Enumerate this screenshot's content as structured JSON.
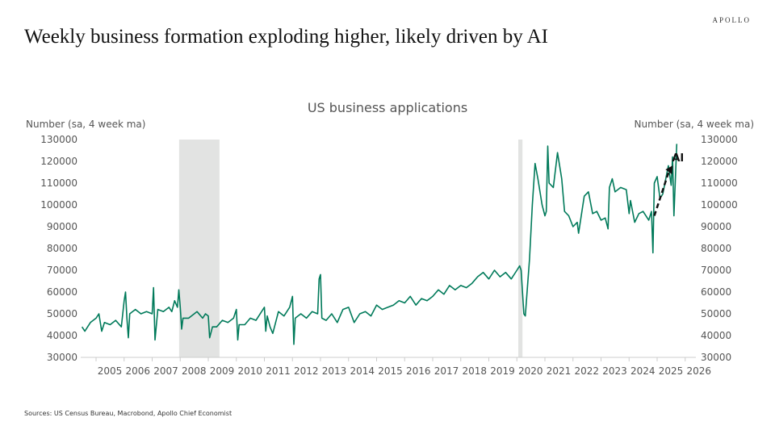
{
  "logo": "APOLLO",
  "headline": "Weekly business formation exploding higher, likely driven by AI",
  "source": "Sources: US Census Bureau, Macrobond, Apollo Chief Economist",
  "chart_data": {
    "type": "line",
    "title": "US business applications",
    "ylabel_left": "Number (sa, 4 week ma)",
    "ylabel_right": "Number (sa, 4 week ma)",
    "ylim": [
      30000,
      130000
    ],
    "yticks": [
      30000,
      40000,
      50000,
      60000,
      70000,
      80000,
      90000,
      100000,
      110000,
      120000,
      130000
    ],
    "xticks": [
      "2005",
      "2006",
      "2007",
      "2008",
      "2009",
      "2010",
      "2011",
      "2012",
      "2013",
      "2014",
      "2015",
      "2016",
      "2017",
      "2018",
      "2019",
      "2020",
      "2021",
      "2022",
      "2023",
      "2024",
      "2025",
      "2026"
    ],
    "line_color": "#007a5a",
    "recession_shading": [
      [
        2007.96,
        2009.4
      ],
      [
        2020.05,
        2020.2
      ]
    ],
    "annotation": {
      "text": "AI",
      "arrow": "dashed",
      "from": [
        2024.9,
        95000
      ],
      "to": [
        2025.5,
        117000
      ]
    },
    "series": [
      {
        "points": [
          [
            2004.5,
            44000
          ],
          [
            2004.6,
            42000
          ],
          [
            2004.8,
            46000
          ],
          [
            2005.0,
            48000
          ],
          [
            2005.1,
            50000
          ],
          [
            2005.2,
            42000
          ],
          [
            2005.3,
            46000
          ],
          [
            2005.5,
            45000
          ],
          [
            2005.7,
            47000
          ],
          [
            2005.9,
            44000
          ],
          [
            2006.0,
            56000
          ],
          [
            2006.05,
            60000
          ],
          [
            2006.1,
            48000
          ],
          [
            2006.15,
            39000
          ],
          [
            2006.2,
            50000
          ],
          [
            2006.4,
            52000
          ],
          [
            2006.6,
            50000
          ],
          [
            2006.8,
            51000
          ],
          [
            2007.0,
            50000
          ],
          [
            2007.05,
            62000
          ],
          [
            2007.1,
            38000
          ],
          [
            2007.2,
            52000
          ],
          [
            2007.4,
            51000
          ],
          [
            2007.6,
            53000
          ],
          [
            2007.7,
            51000
          ],
          [
            2007.8,
            56000
          ],
          [
            2007.9,
            53000
          ],
          [
            2007.95,
            61000
          ],
          [
            2008.0,
            53000
          ],
          [
            2008.05,
            43000
          ],
          [
            2008.1,
            48000
          ],
          [
            2008.3,
            48000
          ],
          [
            2008.5,
            50000
          ],
          [
            2008.6,
            51000
          ],
          [
            2008.8,
            48000
          ],
          [
            2008.9,
            50000
          ],
          [
            2009.0,
            49000
          ],
          [
            2009.05,
            39000
          ],
          [
            2009.15,
            44000
          ],
          [
            2009.3,
            44000
          ],
          [
            2009.5,
            47000
          ],
          [
            2009.7,
            46000
          ],
          [
            2009.9,
            48000
          ],
          [
            2010.0,
            52000
          ],
          [
            2010.05,
            38000
          ],
          [
            2010.1,
            45000
          ],
          [
            2010.3,
            45000
          ],
          [
            2010.5,
            48000
          ],
          [
            2010.7,
            47000
          ],
          [
            2010.9,
            51000
          ],
          [
            2011.0,
            53000
          ],
          [
            2011.05,
            42000
          ],
          [
            2011.1,
            49000
          ],
          [
            2011.2,
            44000
          ],
          [
            2011.3,
            41000
          ],
          [
            2011.5,
            51000
          ],
          [
            2011.7,
            49000
          ],
          [
            2011.9,
            53000
          ],
          [
            2012.0,
            58000
          ],
          [
            2012.05,
            36000
          ],
          [
            2012.1,
            48000
          ],
          [
            2012.3,
            50000
          ],
          [
            2012.5,
            48000
          ],
          [
            2012.7,
            51000
          ],
          [
            2012.9,
            50000
          ],
          [
            2012.95,
            66000
          ],
          [
            2013.0,
            68000
          ],
          [
            2013.05,
            48000
          ],
          [
            2013.2,
            47000
          ],
          [
            2013.4,
            50000
          ],
          [
            2013.6,
            46000
          ],
          [
            2013.8,
            52000
          ],
          [
            2014.0,
            53000
          ],
          [
            2014.2,
            46000
          ],
          [
            2014.4,
            50000
          ],
          [
            2014.6,
            51000
          ],
          [
            2014.8,
            49000
          ],
          [
            2015.0,
            54000
          ],
          [
            2015.2,
            52000
          ],
          [
            2015.4,
            53000
          ],
          [
            2015.6,
            54000
          ],
          [
            2015.8,
            56000
          ],
          [
            2016.0,
            55000
          ],
          [
            2016.2,
            58000
          ],
          [
            2016.4,
            54000
          ],
          [
            2016.6,
            57000
          ],
          [
            2016.8,
            56000
          ],
          [
            2017.0,
            58000
          ],
          [
            2017.2,
            61000
          ],
          [
            2017.4,
            59000
          ],
          [
            2017.6,
            63000
          ],
          [
            2017.8,
            61000
          ],
          [
            2018.0,
            63000
          ],
          [
            2018.2,
            62000
          ],
          [
            2018.4,
            64000
          ],
          [
            2018.6,
            67000
          ],
          [
            2018.8,
            69000
          ],
          [
            2019.0,
            66000
          ],
          [
            2019.2,
            70000
          ],
          [
            2019.4,
            67000
          ],
          [
            2019.6,
            69000
          ],
          [
            2019.8,
            66000
          ],
          [
            2020.0,
            70000
          ],
          [
            2020.1,
            72000
          ],
          [
            2020.15,
            70000
          ],
          [
            2020.25,
            50000
          ],
          [
            2020.3,
            49000
          ],
          [
            2020.45,
            75000
          ],
          [
            2020.55,
            100000
          ],
          [
            2020.65,
            119000
          ],
          [
            2020.75,
            112000
          ],
          [
            2020.9,
            100000
          ],
          [
            2021.0,
            95000
          ],
          [
            2021.05,
            97000
          ],
          [
            2021.1,
            127000
          ],
          [
            2021.15,
            110000
          ],
          [
            2021.3,
            108000
          ],
          [
            2021.45,
            124000
          ],
          [
            2021.6,
            112000
          ],
          [
            2021.7,
            97000
          ],
          [
            2021.85,
            95000
          ],
          [
            2022.0,
            90000
          ],
          [
            2022.15,
            92000
          ],
          [
            2022.2,
            87000
          ],
          [
            2022.4,
            104000
          ],
          [
            2022.55,
            106000
          ],
          [
            2022.7,
            96000
          ],
          [
            2022.85,
            97000
          ],
          [
            2023.0,
            93000
          ],
          [
            2023.15,
            94000
          ],
          [
            2023.25,
            89000
          ],
          [
            2023.3,
            108000
          ],
          [
            2023.4,
            112000
          ],
          [
            2023.5,
            106000
          ],
          [
            2023.7,
            108000
          ],
          [
            2023.9,
            107000
          ],
          [
            2024.0,
            96000
          ],
          [
            2024.05,
            102000
          ],
          [
            2024.2,
            92000
          ],
          [
            2024.35,
            96000
          ],
          [
            2024.5,
            97000
          ],
          [
            2024.7,
            93000
          ],
          [
            2024.8,
            97000
          ],
          [
            2024.85,
            78000
          ],
          [
            2024.9,
            110000
          ],
          [
            2025.0,
            113000
          ],
          [
            2025.1,
            103000
          ],
          [
            2025.2,
            105000
          ],
          [
            2025.4,
            118000
          ],
          [
            2025.5,
            109000
          ],
          [
            2025.55,
            122000
          ],
          [
            2025.6,
            95000
          ],
          [
            2025.7,
            128000
          ]
        ]
      }
    ]
  }
}
